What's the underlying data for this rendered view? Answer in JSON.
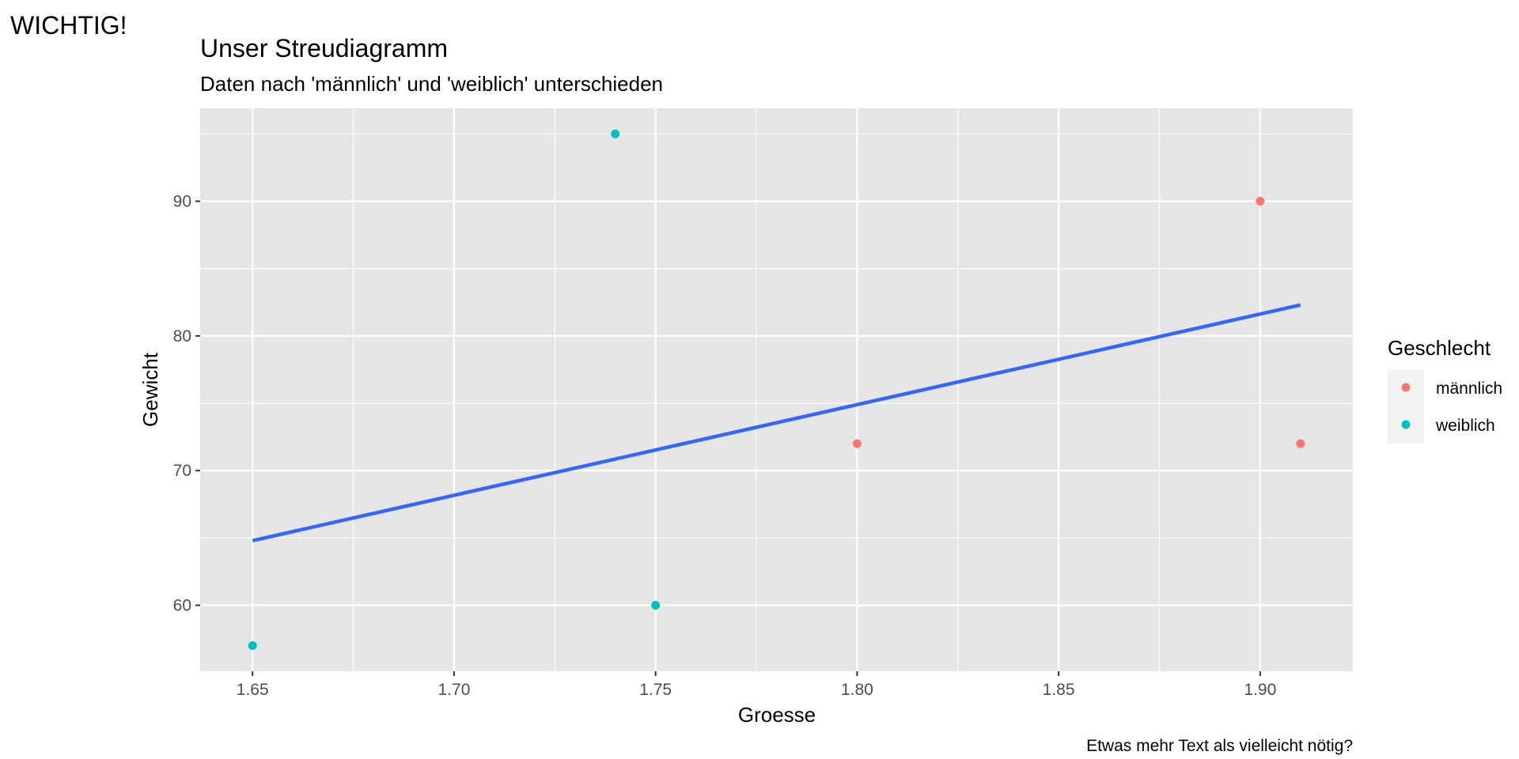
{
  "tag": "WICHTIG!",
  "caption": "Etwas mehr Text als vielleicht nötig?",
  "colors": {
    "panel_background": "#e5e5e5",
    "grid": "#ffffff",
    "maennlich": "#f8766d",
    "weiblich": "#00bfc4",
    "trend_line": "#3366ff",
    "tick_text": "#4d4d4d"
  },
  "chart_data": {
    "type": "scatter",
    "title": "Unser Streudiagramm",
    "subtitle": "Daten nach 'männlich' und 'weiblich' unterschieden",
    "xlabel": "Groesse",
    "ylabel": "Gewicht",
    "xlim": [
      1.637,
      1.923
    ],
    "ylim": [
      55.1,
      96.9
    ],
    "x_ticks": [
      1.65,
      1.7,
      1.75,
      1.8,
      1.85,
      1.9
    ],
    "x_tick_labels": [
      "1.65",
      "1.70",
      "1.75",
      "1.80",
      "1.85",
      "1.90"
    ],
    "y_ticks": [
      60,
      70,
      80,
      90
    ],
    "y_tick_labels": [
      "60",
      "70",
      "80",
      "90"
    ],
    "grid": true,
    "legend": {
      "title": "Geschlecht",
      "placement": "right",
      "entries": [
        "männlich",
        "weiblich"
      ]
    },
    "series": [
      {
        "name": "männlich",
        "color": "#f8766d",
        "points": [
          [
            1.8,
            72
          ],
          [
            1.9,
            90
          ],
          [
            1.91,
            72
          ]
        ]
      },
      {
        "name": "weiblich",
        "color": "#00bfc4",
        "points": [
          [
            1.65,
            57
          ],
          [
            1.74,
            95
          ],
          [
            1.75,
            60
          ]
        ]
      }
    ],
    "trend_line": {
      "color": "#3366ff",
      "from": [
        1.65,
        64.8
      ],
      "to": [
        1.91,
        82.3
      ]
    }
  }
}
